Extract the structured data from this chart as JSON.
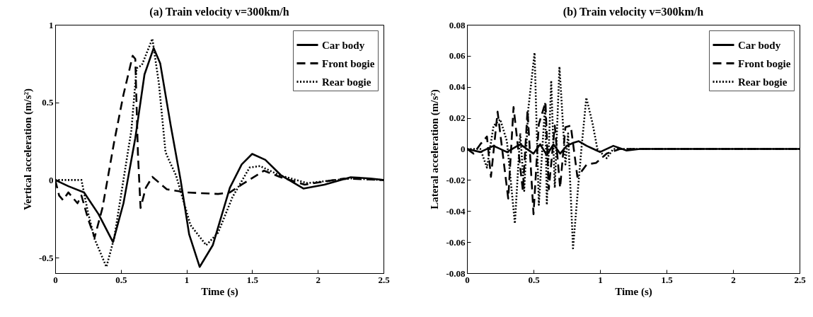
{
  "chart_data": [
    {
      "type": "line",
      "title": "(a)  Train velocity  v=300km/h",
      "xlabel": "Time (s)",
      "ylabel": "Vertical acceleration (m/s²)",
      "xlim": [
        0,
        2.5
      ],
      "xticks": [
        0,
        0.5,
        1,
        1.5,
        2,
        2.5
      ],
      "ylim": [
        -0.6,
        1
      ],
      "yticks": [
        -0.5,
        0,
        0.5,
        1
      ],
      "grid": false,
      "legend": "top right",
      "marker": "none",
      "series": [
        {
          "name": "Car body",
          "color": "#000000",
          "line_style": "solid",
          "x": [
            0,
            0.1,
            0.22,
            0.33,
            0.44,
            0.52,
            0.61,
            0.68,
            0.75,
            0.8,
            0.88,
            0.955,
            1.02,
            1.1,
            1.2,
            1.33,
            1.42,
            1.5,
            1.6,
            1.72,
            1.89,
            2.05,
            2.25,
            2.4,
            2.5
          ],
          "values": [
            0,
            -0.04,
            -0.08,
            -0.22,
            -0.4,
            -0.15,
            0.27,
            0.68,
            0.85,
            0.75,
            0.35,
            0,
            -0.35,
            -0.56,
            -0.42,
            -0.05,
            0.1,
            0.168,
            0.13,
            0.03,
            -0.055,
            -0.03,
            0.018,
            0.01,
            0
          ]
        },
        {
          "name": "Front bogie",
          "color": "#000000",
          "line_style": "dashed",
          "x": [
            0,
            0.03,
            0.06,
            0.1,
            0.14,
            0.17,
            0.2,
            0.25,
            0.3,
            0.36,
            0.45,
            0.52,
            0.59,
            0.61,
            0.63,
            0.65,
            0.69,
            0.74,
            0.85,
            1.0,
            1.24,
            1.33,
            1.42,
            1.59,
            1.71,
            1.9,
            2.2,
            2.5
          ],
          "values": [
            0,
            -0.1,
            -0.13,
            -0.08,
            -0.12,
            -0.15,
            -0.1,
            -0.25,
            -0.37,
            -0.18,
            0.25,
            0.55,
            0.8,
            0.78,
            0.17,
            -0.18,
            -0.05,
            0.02,
            -0.06,
            -0.08,
            -0.09,
            -0.08,
            -0.03,
            0.06,
            0.02,
            -0.03,
            0.01,
            0
          ]
        },
        {
          "name": "Rear bogie",
          "color": "#000000",
          "line_style": "dotted",
          "x": [
            0,
            0.1,
            0.2,
            0.25,
            0.3,
            0.39,
            0.45,
            0.58,
            0.62,
            0.66,
            0.74,
            0.79,
            0.84,
            0.86,
            0.92,
            1.03,
            1.15,
            1.24,
            1.35,
            1.48,
            1.56,
            1.71,
            1.92,
            2.25,
            2.5
          ],
          "values": [
            0,
            0,
            0,
            -0.21,
            -0.38,
            -0.56,
            -0.37,
            0.32,
            0.72,
            0.74,
            0.91,
            0.62,
            0.18,
            0.14,
            0.03,
            -0.29,
            -0.42,
            -0.34,
            -0.11,
            0.08,
            0.09,
            0.03,
            -0.02,
            0.01,
            0
          ]
        }
      ]
    },
    {
      "type": "line",
      "title": "(b)  Train velocity  v=300km/h",
      "xlabel": "Time (s)",
      "ylabel": "Lateral acceleration (m/s²)",
      "xlim": [
        0,
        2.5
      ],
      "xticks": [
        0,
        0.5,
        1,
        1.5,
        2,
        2.5
      ],
      "ylim": [
        -0.08,
        0.08
      ],
      "yticks": [
        -0.08,
        -0.06,
        -0.04,
        -0.02,
        0,
        0.02,
        0.04,
        0.06,
        0.08
      ],
      "grid": false,
      "legend": "top right",
      "marker": "none",
      "series": [
        {
          "name": "Car body",
          "color": "#000000",
          "line_style": "solid",
          "x": [
            0,
            0.1,
            0.2,
            0.3,
            0.4,
            0.5,
            0.55,
            0.6,
            0.65,
            0.7,
            0.75,
            0.8,
            0.84,
            0.9,
            0.95,
            1.0,
            1.1,
            1.2,
            1.3,
            2.5
          ],
          "values": [
            0,
            -0.002,
            0.002,
            -0.002,
            0.003,
            -0.003,
            0.003,
            -0.004,
            0.003,
            -0.003,
            0.002,
            0.004,
            0.005,
            0.002,
            0,
            -0.002,
            0.002,
            -0.001,
            0,
            0
          ]
        },
        {
          "name": "Front bogie",
          "color": "#000000",
          "line_style": "dashed",
          "x": [
            0,
            0.05,
            0.1,
            0.15,
            0.18,
            0.21,
            0.23,
            0.31,
            0.35,
            0.42,
            0.455,
            0.5,
            0.54,
            0.59,
            0.615,
            0.66,
            0.7,
            0.74,
            0.78,
            0.83,
            0.9,
            0.97,
            1.05,
            1.15,
            2.5
          ],
          "values": [
            0,
            -0.003,
            0.003,
            0.008,
            -0.018,
            0.007,
            0.024,
            -0.032,
            0.027,
            -0.027,
            0.025,
            -0.042,
            0.016,
            0.03,
            -0.026,
            0.015,
            -0.025,
            0.014,
            0.015,
            -0.018,
            -0.01,
            -0.009,
            -0.003,
            0,
            0
          ]
        },
        {
          "name": "Rear bogie",
          "color": "#000000",
          "line_style": "dotted",
          "x": [
            0,
            0.1,
            0.15,
            0.2,
            0.25,
            0.3,
            0.36,
            0.4,
            0.43,
            0.46,
            0.508,
            0.54,
            0.588,
            0.6,
            0.633,
            0.66,
            0.695,
            0.74,
            0.76,
            0.797,
            0.84,
            0.86,
            0.897,
            0.945,
            0.98,
            1.05,
            1.1,
            1.5,
            2.5
          ],
          "values": [
            0,
            0,
            -0.012,
            0.015,
            0.019,
            0.005,
            -0.048,
            0.01,
            -0.027,
            0.025,
            0.062,
            -0.036,
            0.03,
            -0.036,
            0.044,
            -0.025,
            0.053,
            -0.01,
            0.01,
            -0.064,
            -0.02,
            0,
            0.033,
            0.016,
            0,
            -0.006,
            0,
            0,
            0
          ]
        }
      ]
    }
  ]
}
